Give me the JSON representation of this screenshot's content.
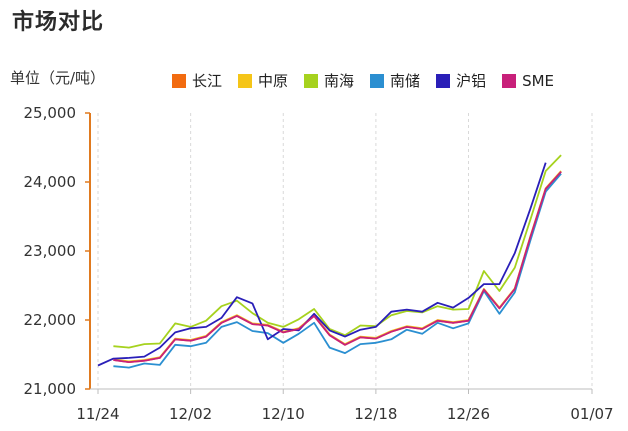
{
  "header": {
    "title": "市场对比"
  },
  "colors": {
    "axis": "#e07a1f",
    "grid": "#d9d9d9"
  },
  "chart_data": {
    "type": "line",
    "ylabel": "单位（元/吨）",
    "ylim": [
      21000,
      25000
    ],
    "y_ticks": [
      21000,
      22000,
      23000,
      24000,
      25000
    ],
    "y_tick_labels": [
      "21,000",
      "22,000",
      "23,000",
      "24,000",
      "25,000"
    ],
    "x_tick_labels": [
      "11/24",
      "12/02",
      "12/10",
      "12/18",
      "12/26",
      "01/07"
    ],
    "x_tick_index": [
      0,
      6,
      12,
      18,
      24,
      32
    ],
    "grid": "vertical dashed",
    "legend_position": "top",
    "x_count": 31,
    "series": [
      {
        "name": "长江",
        "color": "#f26b10",
        "values": [
          null,
          21420,
          21390,
          21410,
          21450,
          21720,
          21700,
          21760,
          21960,
          22060,
          21940,
          21920,
          21820,
          21870,
          22060,
          21780,
          21640,
          21750,
          21730,
          21830,
          21900,
          21870,
          21990,
          21960,
          21990,
          22440,
          22170,
          22450,
          23200,
          23900,
          24150
        ]
      },
      {
        "name": "中原",
        "color": "#f5c518",
        "values": [
          null,
          21430,
          21400,
          21420,
          21460,
          21730,
          21710,
          21770,
          21970,
          22070,
          21950,
          21930,
          21830,
          21880,
          22070,
          21790,
          21650,
          21760,
          21740,
          21840,
          21910,
          21880,
          22000,
          21970,
          22000,
          22450,
          22180,
          22460,
          23210,
          23910,
          24160
        ]
      },
      {
        "name": "南海",
        "color": "#a6d21e",
        "values": [
          null,
          21620,
          21600,
          21650,
          21660,
          21950,
          21900,
          21990,
          22200,
          22280,
          22100,
          21960,
          21900,
          22010,
          22160,
          21870,
          21780,
          21920,
          21910,
          22070,
          22130,
          22110,
          22200,
          22150,
          22160,
          22710,
          22420,
          22760,
          23450,
          24160,
          24390
        ]
      },
      {
        "name": "南储",
        "color": "#2b8fd1",
        "values": [
          null,
          21330,
          21310,
          21370,
          21350,
          21640,
          21620,
          21670,
          21900,
          21970,
          21840,
          21810,
          21670,
          21800,
          21960,
          21600,
          21520,
          21650,
          21670,
          21720,
          21860,
          21800,
          21960,
          21880,
          21950,
          22420,
          22090,
          22400,
          23150,
          23860,
          24120
        ]
      },
      {
        "name": "沪铝",
        "color": "#2a1fb8",
        "values": [
          21340,
          21440,
          21450,
          21470,
          21600,
          21820,
          21880,
          21900,
          22030,
          22330,
          22240,
          21720,
          21870,
          21850,
          22090,
          21850,
          21760,
          21860,
          21900,
          22120,
          22150,
          22120,
          22250,
          22180,
          22320,
          22520,
          22520,
          22970,
          23610,
          24280,
          null
        ]
      },
      {
        "name": "SME",
        "color": "#c8207a",
        "values": [
          null,
          21420,
          21390,
          21410,
          21450,
          21720,
          21700,
          21760,
          21960,
          22060,
          21940,
          21920,
          21820,
          21870,
          22060,
          21780,
          21640,
          21750,
          21730,
          21830,
          21900,
          21870,
          21990,
          21960,
          21990,
          22440,
          22170,
          22450,
          23200,
          23900,
          24150
        ]
      }
    ]
  }
}
